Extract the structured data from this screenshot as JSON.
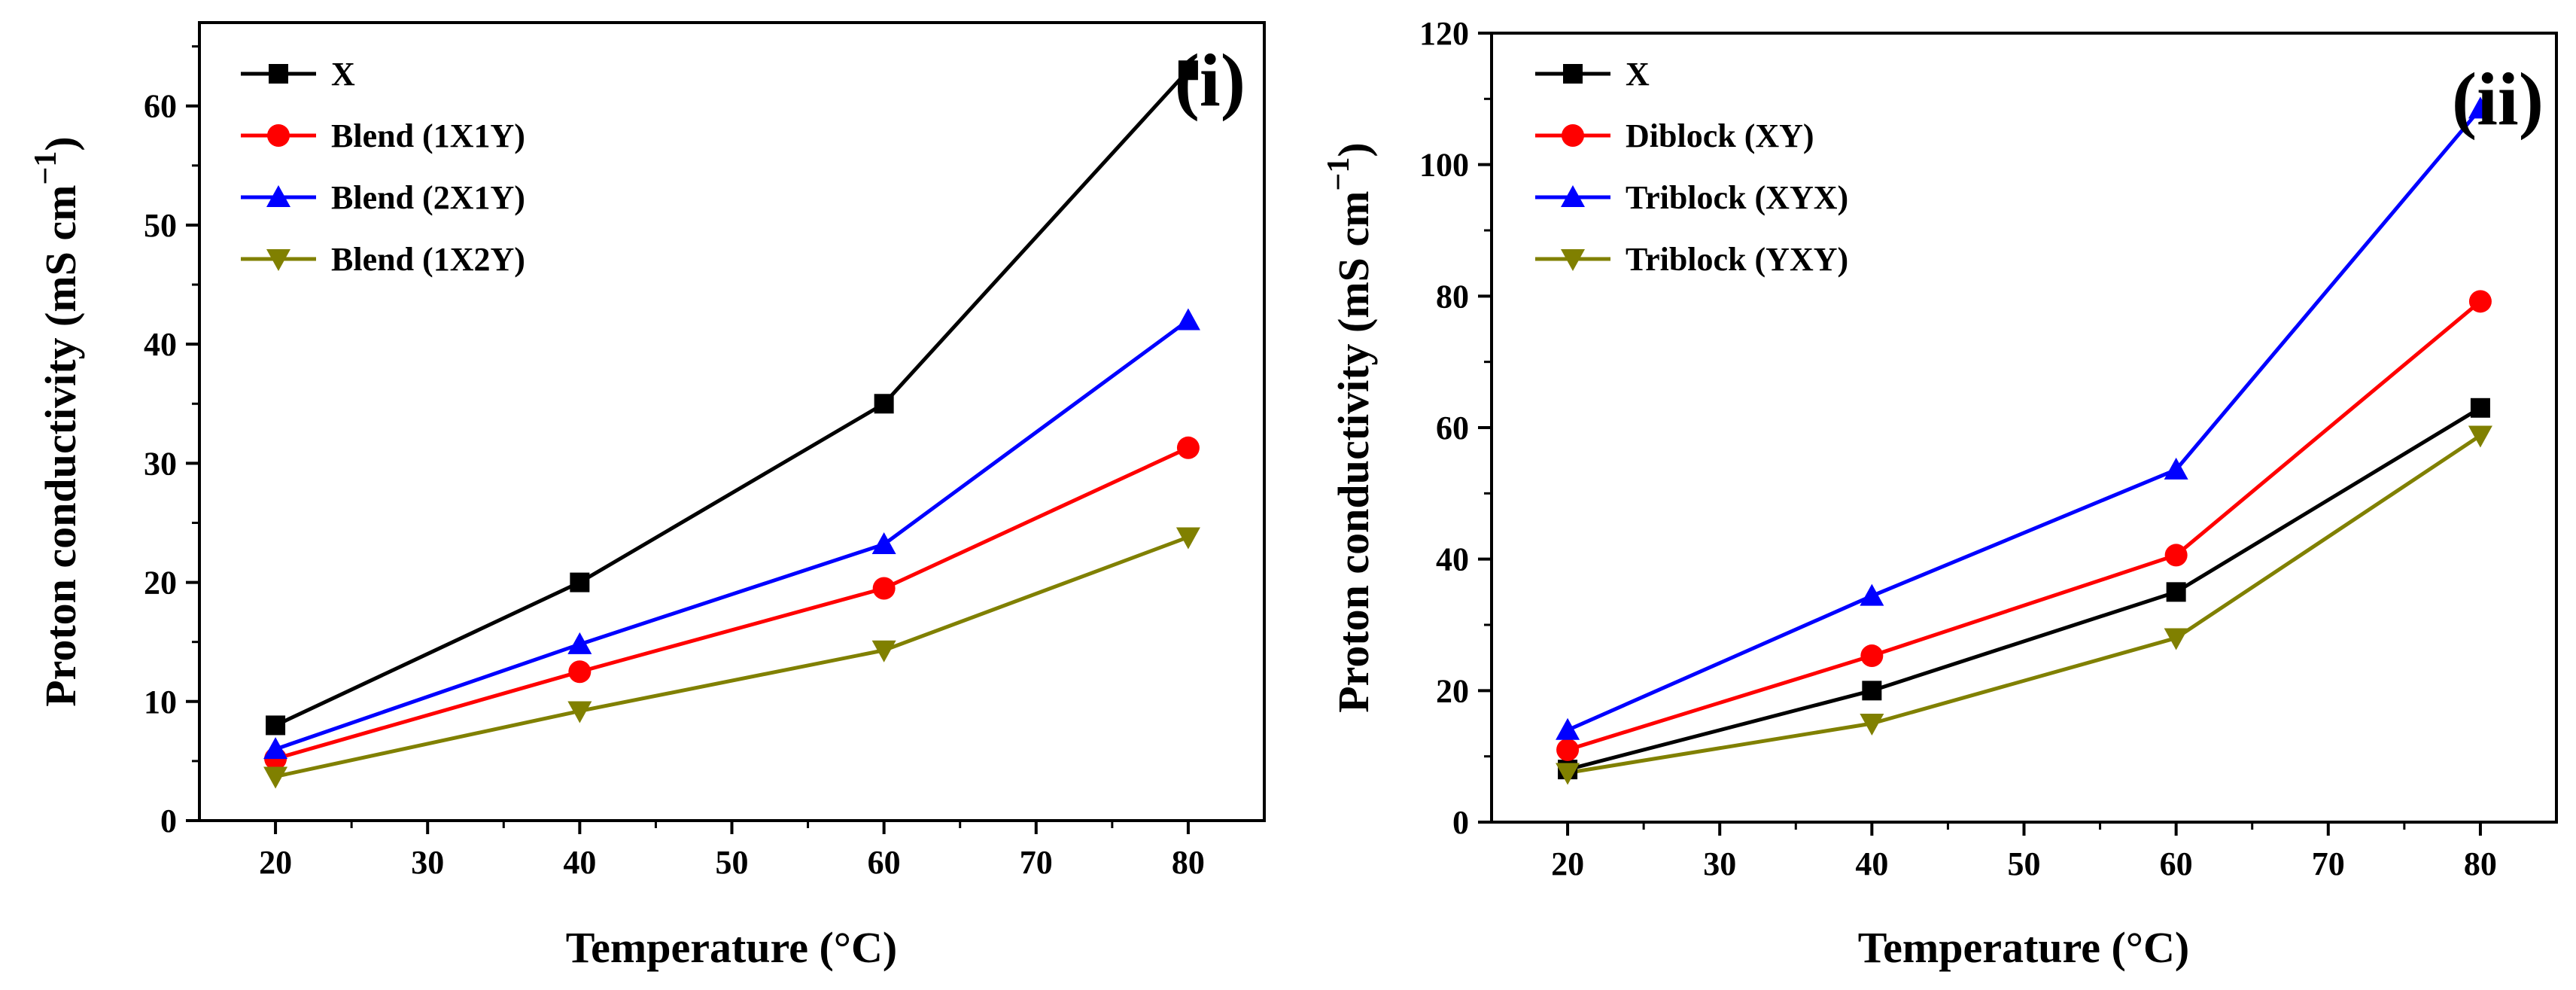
{
  "chart_data": [
    {
      "type": "line",
      "panel_label": "(i)",
      "xlabel": "Temperature (°C)",
      "ylabel_main": "Proton conductivity (mS cm",
      "ylabel_sup": "−1",
      "ylabel_close": ")",
      "xlim": [
        15,
        85
      ],
      "ylim": [
        0,
        67
      ],
      "xticks": [
        20,
        30,
        40,
        50,
        60,
        70,
        80
      ],
      "yticks": [
        0,
        10,
        20,
        30,
        40,
        50,
        60
      ],
      "x": [
        20,
        40,
        60,
        80
      ],
      "legend_position": "top-left",
      "series": [
        {
          "name": "X",
          "color": "#000000",
          "marker": "square",
          "values": [
            8,
            20,
            35,
            63
          ]
        },
        {
          "name": "Blend (1X1Y)",
          "color": "#ff0000",
          "marker": "circle",
          "values": [
            5.2,
            12.5,
            19.5,
            31.3
          ]
        },
        {
          "name": "Blend (2X1Y)",
          "color": "#0000ff",
          "marker": "triangle-up",
          "values": [
            6,
            14.8,
            23.2,
            42
          ]
        },
        {
          "name": "Blend (1X2Y)",
          "color": "#808000",
          "marker": "triangle-down",
          "values": [
            3.7,
            9.2,
            14.3,
            23.8
          ]
        }
      ]
    },
    {
      "type": "line",
      "panel_label": "(ii)",
      "xlabel": "Temperature (°C)",
      "ylabel_main": "Proton conductivity (mS cm",
      "ylabel_sup": "−1",
      "ylabel_close": ")",
      "xlim": [
        15,
        85
      ],
      "ylim": [
        0,
        120
      ],
      "xticks": [
        20,
        30,
        40,
        50,
        60,
        70,
        80
      ],
      "yticks": [
        0,
        20,
        40,
        60,
        80,
        100,
        120
      ],
      "x": [
        20,
        40,
        60,
        80
      ],
      "legend_position": "top-left",
      "series": [
        {
          "name": "X",
          "color": "#000000",
          "marker": "square",
          "values": [
            8,
            20,
            35,
            63
          ]
        },
        {
          "name": "Diblock (XY)",
          "color": "#ff0000",
          "marker": "circle",
          "values": [
            11,
            25.3,
            40.6,
            79.2
          ]
        },
        {
          "name": "Triblock (XYX)",
          "color": "#0000ff",
          "marker": "triangle-up",
          "values": [
            14,
            34.4,
            53.6,
            108.5
          ]
        },
        {
          "name": "Triblock (YXY)",
          "color": "#808000",
          "marker": "triangle-down",
          "values": [
            7.5,
            15,
            28,
            58.8
          ]
        }
      ]
    }
  ]
}
